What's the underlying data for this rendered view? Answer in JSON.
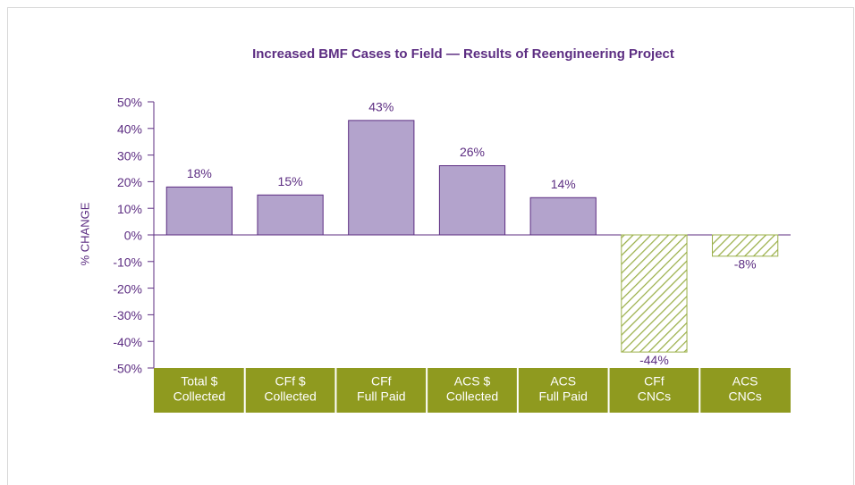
{
  "chart_data": {
    "type": "bar",
    "title": "Increased BMF Cases to Field — Results of Reengineering Project",
    "y_label": "% CHANGE",
    "categories": [
      [
        "Total $",
        "Collected"
      ],
      [
        "CFf $",
        "Collected"
      ],
      [
        "CFf",
        "Full Paid"
      ],
      [
        "ACS $",
        "Collected"
      ],
      [
        "ACS",
        "Full Paid"
      ],
      [
        "CFf",
        "CNCs"
      ],
      [
        "ACS",
        "CNCs"
      ]
    ],
    "values": [
      18,
      15,
      43,
      26,
      14,
      -44,
      -8
    ],
    "value_labels": [
      "18%",
      "15%",
      "43%",
      "26%",
      "14%",
      "-44%",
      "-8%"
    ],
    "color": "#b3a3cc",
    "negative_color": "#9bb04a",
    "ylim": [
      -50,
      50
    ],
    "yticks": [
      {
        "value": 50,
        "label": "50%"
      },
      {
        "value": 40,
        "label": "40%"
      },
      {
        "value": 30,
        "label": "30%"
      },
      {
        "value": 20,
        "label": "20%"
      },
      {
        "value": 10,
        "label": "10%"
      },
      {
        "value": 0,
        "label": "0%"
      },
      {
        "value": -10,
        "label": "-10%"
      },
      {
        "value": -20,
        "label": "-20%"
      },
      {
        "value": -30,
        "label": "-30%"
      },
      {
        "value": -40,
        "label": "-40%"
      },
      {
        "value": -50,
        "label": "-50%"
      }
    ]
  }
}
